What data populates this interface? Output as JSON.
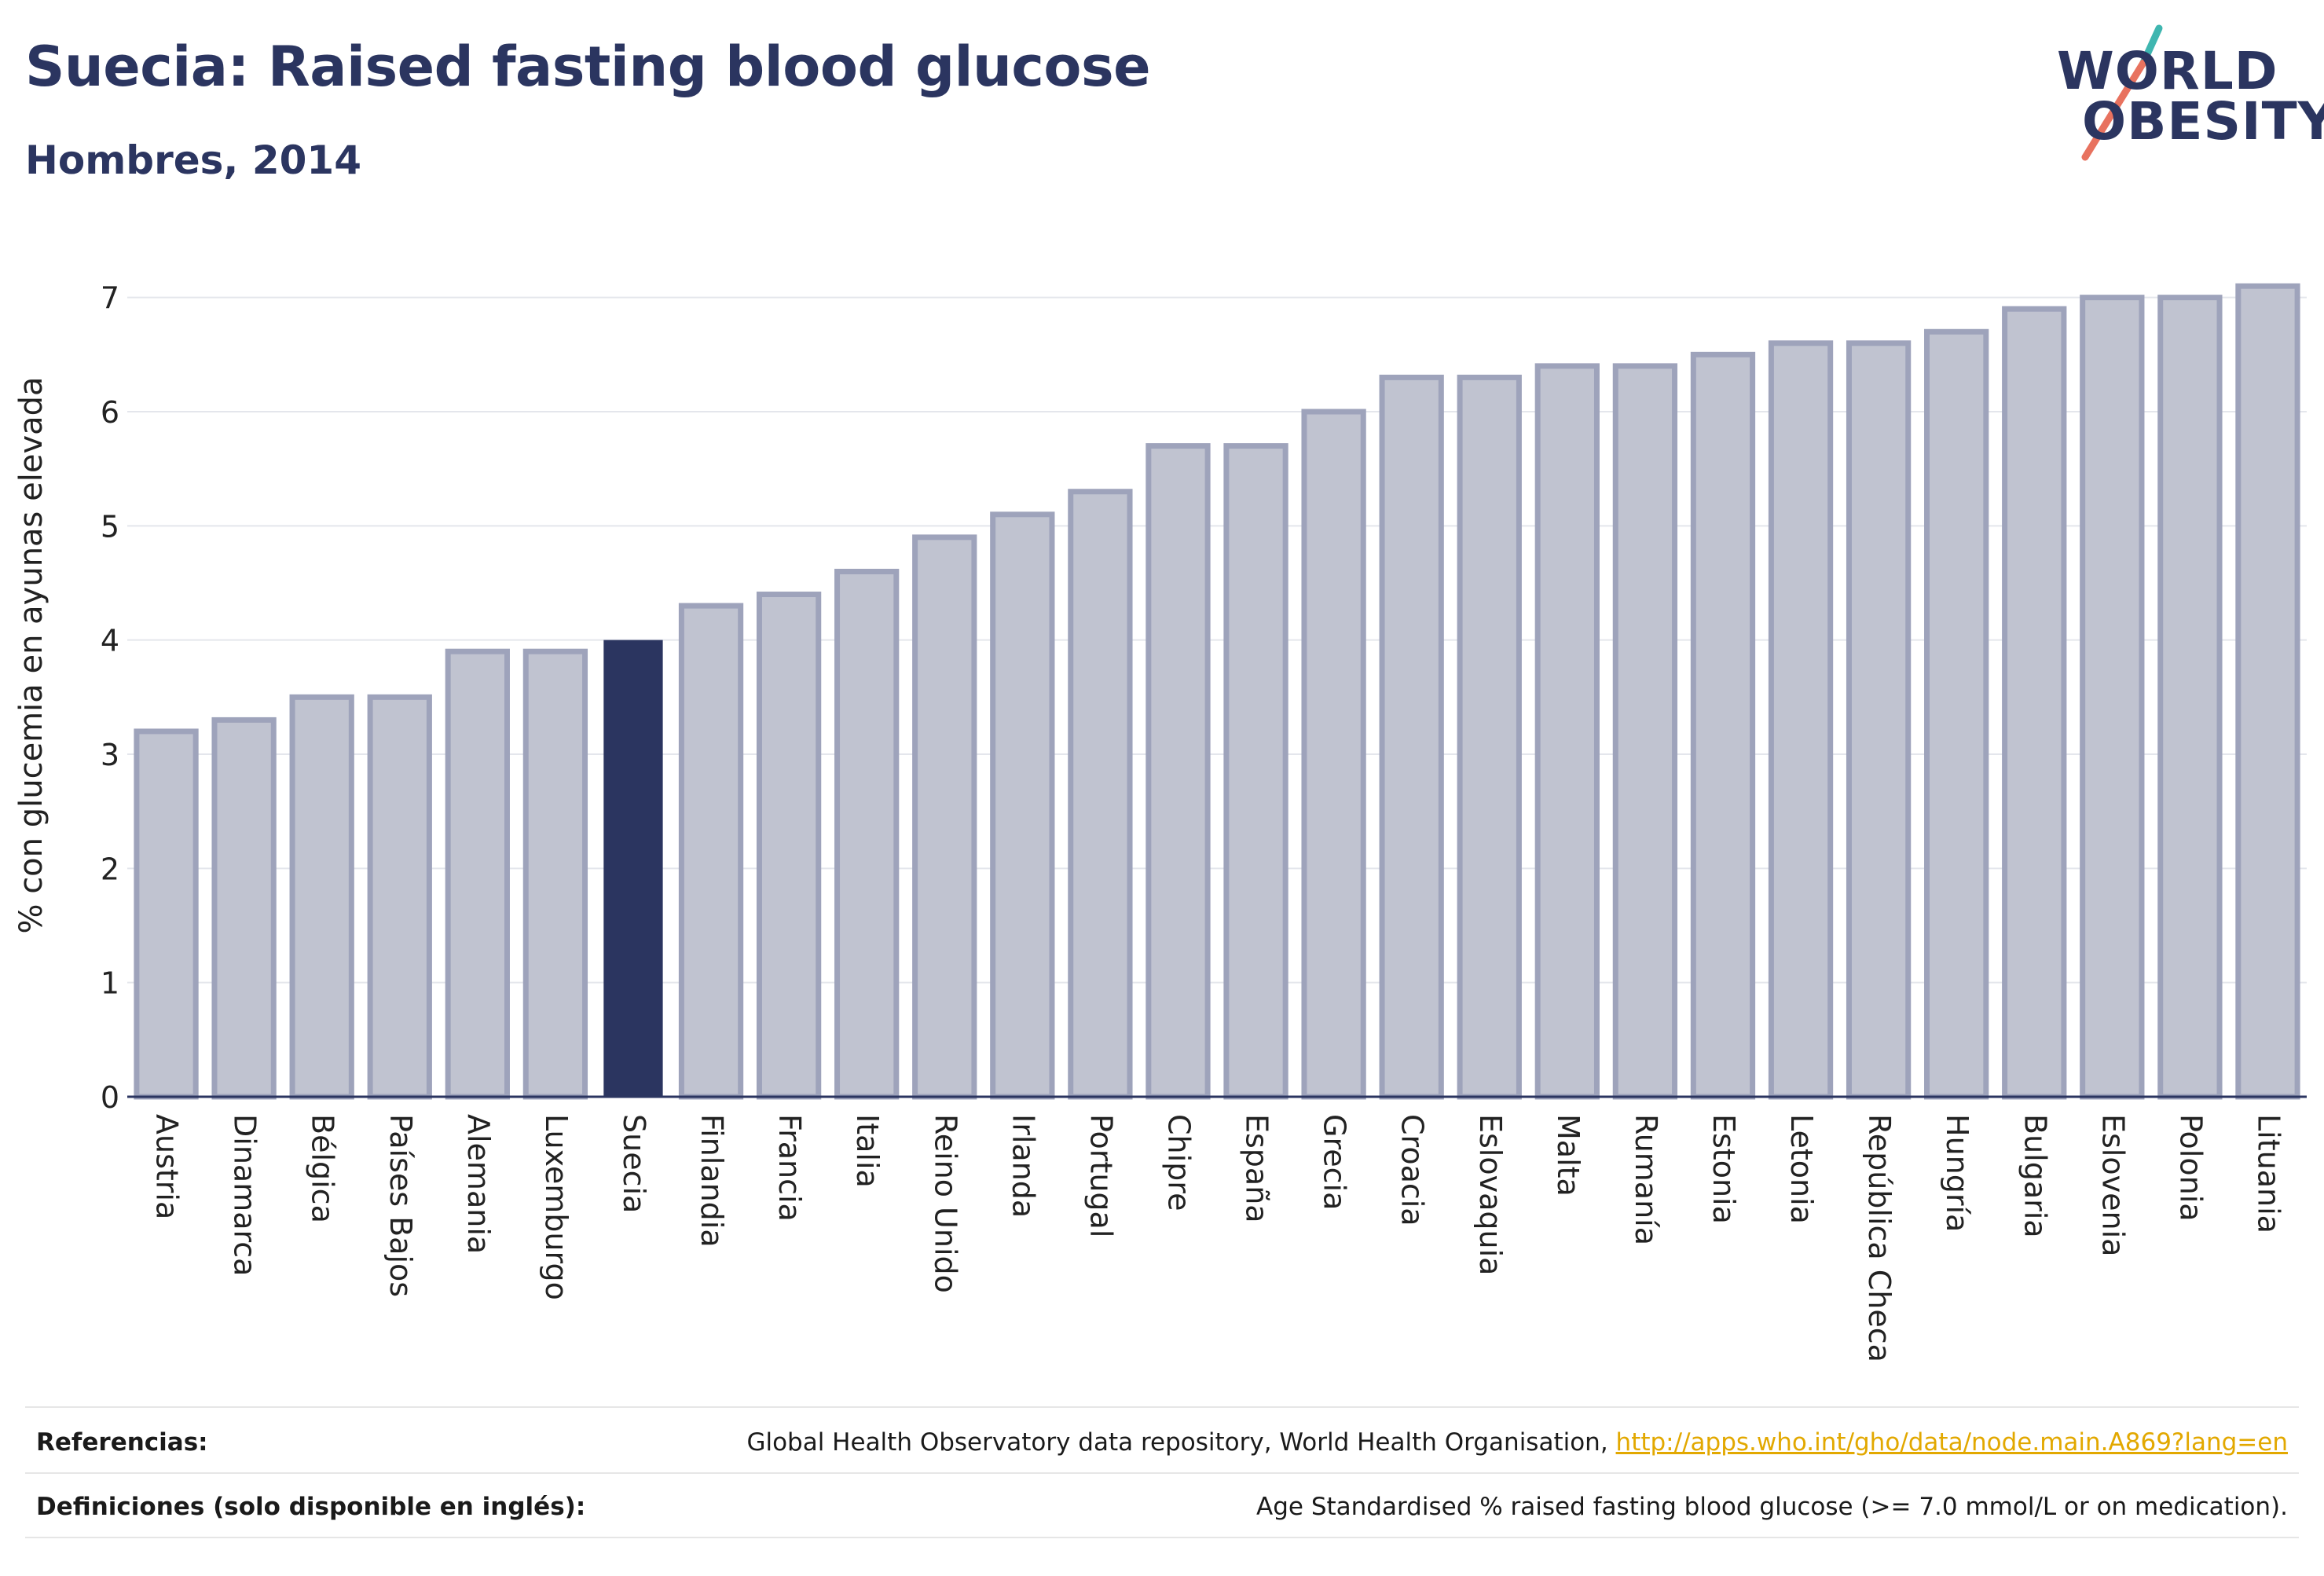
{
  "header": {
    "title": "Suecia: Raised fasting blood glucose",
    "subtitle": "Hombres, 2014"
  },
  "logo": {
    "line1": "WORLD",
    "line2": "OBESITY",
    "accent_colors": [
      "#3fb6b0",
      "#e8725f"
    ]
  },
  "colors": {
    "bar": "#c0c3d0",
    "bar_stroke": "#9ea3bb",
    "highlight": "#2b3560",
    "grid": "#e4e6ec",
    "text": "#2b3560"
  },
  "chart_data": {
    "type": "bar",
    "ylabel": "% con glucemia en ayunas elevada",
    "ylim": [
      0,
      7.5
    ],
    "yticks": [
      0,
      1,
      2,
      3,
      4,
      5,
      6,
      7
    ],
    "grid": true,
    "highlight": "Suecia",
    "categories": [
      "Austria",
      "Dinamarca",
      "Bélgica",
      "Países Bajos",
      "Alemania",
      "Luxemburgo",
      "Suecia",
      "Finlandia",
      "Francia",
      "Italia",
      "Reino Unido",
      "Irlanda",
      "Portugal",
      "Chipre",
      "España",
      "Grecia",
      "Croacia",
      "Eslovaquia",
      "Malta",
      "Rumanía",
      "Estonia",
      "Letonia",
      "República Checa",
      "Hungría",
      "Bulgaria",
      "Eslovenia",
      "Polonia",
      "Lituania"
    ],
    "values": [
      3.2,
      3.3,
      3.5,
      3.5,
      3.9,
      3.9,
      4.0,
      4.3,
      4.4,
      4.6,
      4.9,
      5.1,
      5.3,
      5.7,
      5.7,
      6.0,
      6.3,
      6.3,
      6.4,
      6.4,
      6.5,
      6.6,
      6.6,
      6.7,
      6.9,
      7.0,
      7.0,
      7.1
    ]
  },
  "footer": {
    "references_label": "Referencias:",
    "references_text": "Global Health Observatory data repository, World Health Organisation, ",
    "references_link": "http://apps.who.int/gho/data/node.main.A869?lang=en",
    "definitions_label": "Definiciones (solo disponible en inglés):",
    "definitions_text": "Age Standardised % raised fasting blood glucose (>= 7.0 mmol/L or on medication)."
  }
}
